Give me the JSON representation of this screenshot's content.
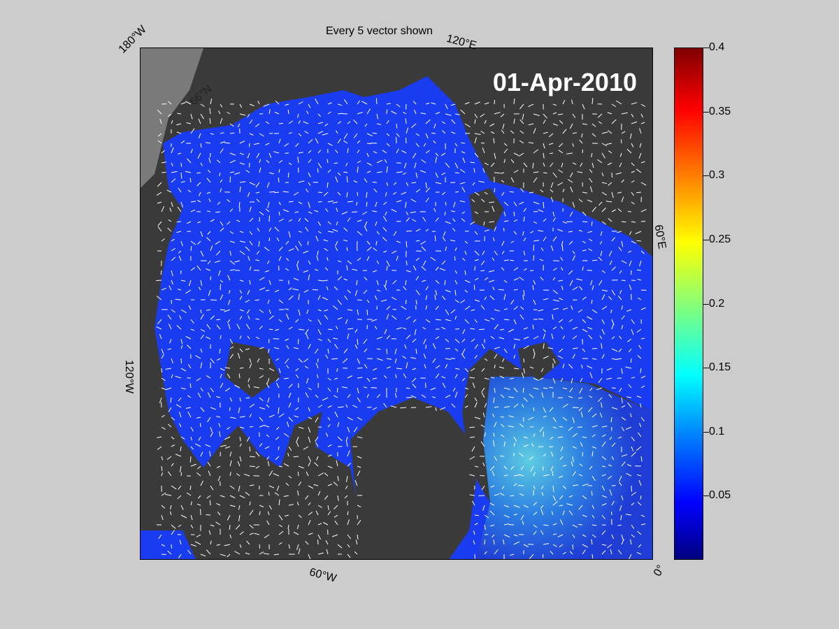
{
  "title": "Every 5 vector shown",
  "date": "01-Apr-2010",
  "map_labels": {
    "lon_180w": "180°W",
    "lon_120e": "120°E",
    "lon_60e": "60°E",
    "lon_120w": "120°W",
    "lon_60w": "60°W",
    "lon_0": "0°",
    "lat_66n": "66°N"
  },
  "colorbar": {
    "min": 0,
    "max": 0.4,
    "ticks": [
      {
        "value": 0.4,
        "label": "0.4"
      },
      {
        "value": 0.35,
        "label": "0.35"
      },
      {
        "value": 0.3,
        "label": "0.3"
      },
      {
        "value": 0.25,
        "label": "0.25"
      },
      {
        "value": 0.2,
        "label": "0.2"
      },
      {
        "value": 0.15,
        "label": "0.15"
      },
      {
        "value": 0.1,
        "label": "0.1"
      },
      {
        "value": 0.05,
        "label": "0.05"
      }
    ]
  },
  "colors": {
    "background": "#cccccc",
    "land": "#3a3a3a",
    "outer_land": "#7a7a7a",
    "ice_low": "#1a3cf0",
    "ice_high": "#5fe0ff",
    "vector": "#ffffff"
  }
}
